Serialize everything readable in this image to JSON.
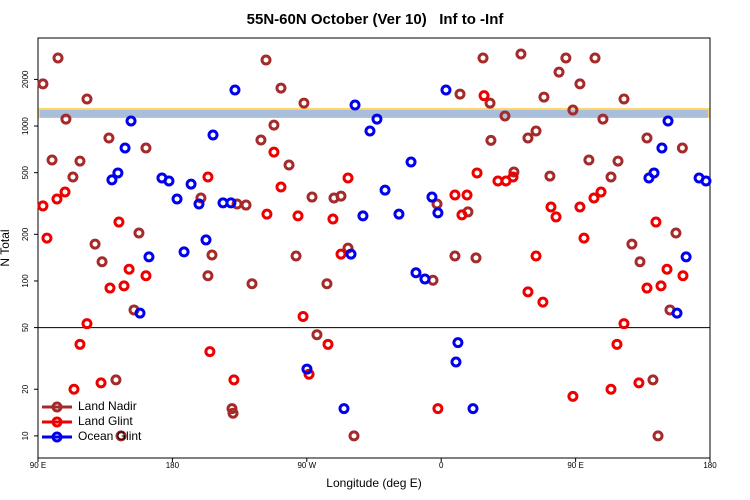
{
  "chart_data": {
    "type": "scatter",
    "title": "55N-60N October (Ver 10)   Inf to -Inf",
    "x_label": "Longitude (deg E)",
    "y_label": "N Total",
    "xlim": [
      90,
      540
    ],
    "xticks": [
      {
        "value": 90,
        "label": "90 E"
      },
      {
        "value": 180,
        "label": "180"
      },
      {
        "value": 270,
        "label": "90 W"
      },
      {
        "value": 360,
        "label": "0"
      },
      {
        "value": 450,
        "label": "90 E"
      },
      {
        "value": 540,
        "label": "180"
      }
    ],
    "ylim": [
      7.2,
      3700
    ],
    "yticks": [
      10,
      20,
      50,
      100,
      200,
      500,
      1000,
      2000
    ],
    "log_y": true,
    "hline": 50,
    "band": [
      1130,
      1310
    ],
    "legend": "bottom-left",
    "series": [
      {
        "name": "Land Nadir",
        "color": "#a52a2a",
        "x": [
          93.3,
          103.4,
          99.4,
          108.7,
          113.4,
          118.1,
          122.8,
          128.2,
          132.9,
          137.5,
          142.2,
          145.6,
          154.3,
          157.6,
          162.3,
          203.8,
          206.5,
          199.1,
          223.3,
          220.6,
          219.9,
          229.3,
          233.3,
          239.3,
          242.7,
          248.0,
          252.7,
          258.1,
          262.8,
          268.1,
          273.5,
          276.8,
          283.5,
          288.2,
          292.9,
          297.6,
          301.6,
          354.5,
          357.2,
          369.2,
          372.6,
          377.9,
          383.3,
          388.0,
          393.3,
          392.7,
          402.7,
          408.7,
          413.4,
          418.1,
          423.5,
          428.8,
          432.8,
          438.9,
          443.5,
          448.2,
          452.9,
          458.9,
          463.0,
          468.3,
          473.7,
          478.4,
          482.4,
          487.7,
          493.1,
          497.8,
          501.8,
          505.2,
          513.2,
          517.2,
          521.5
        ],
        "values": [
          1870,
          2750,
          604,
          1109,
          469,
          594,
          1494,
          173,
          133,
          837,
          23,
          10,
          65,
          204,
          721,
          108,
          147,
          343,
          314,
          14,
          15,
          309,
          96,
          812,
          2667,
          1014,
          1758,
          560,
          145,
          1406,
          348,
          45,
          96,
          343,
          353,
          163,
          10,
          101,
          314,
          145,
          1608,
          279,
          141,
          2750,
          808,
          1406,
          1161,
          505,
          2917,
          837,
          929,
          1538,
          475,
          2228,
          2750,
          1268,
          1870,
          604,
          2750,
          1109,
          469,
          594,
          1494,
          173,
          133,
          837,
          23,
          10,
          65,
          204,
          721
        ]
      },
      {
        "name": "Land Glint",
        "color": "#ee0000",
        "x": [
          93.3,
          96.0,
          102.7,
          108.1,
          114.1,
          118.1,
          122.8,
          132.2,
          138.2,
          147.6,
          151.0,
          144.2,
          162.3,
          203.8,
          205.1,
          221.2,
          243.3,
          248.0,
          252.7,
          264.1,
          267.5,
          271.5,
          284.2,
          287.5,
          292.9,
          297.6,
          357.8,
          369.2,
          373.9,
          377.3,
          384.0,
          388.7,
          398.0,
          403.4,
          408.1,
          418.1,
          423.5,
          428.1,
          433.5,
          436.9,
          448.2,
          452.9,
          455.6,
          462.3,
          467.0,
          473.7,
          477.7,
          482.4,
          492.4,
          497.8,
          507.2,
          511.2,
          503.8,
          521.9
        ],
        "values": [
          305,
          189,
          338,
          375,
          20,
          39,
          53,
          22,
          90,
          93,
          119,
          240,
          108,
          469,
          35,
          23,
          270,
          679,
          404,
          263,
          59,
          25,
          39,
          251,
          149,
          462,
          15,
          359,
          267,
          359,
          498,
          1570,
          442,
          442,
          469,
          85,
          145,
          73,
          300,
          259,
          18,
          300,
          189,
          343,
          375,
          20,
          39,
          53,
          22,
          90,
          93,
          119,
          240,
          108
        ]
      },
      {
        "name": "Ocean Glint",
        "color": "#0000ee",
        "x": [
          139.5,
          143.5,
          148.3,
          152.3,
          158.3,
          164.3,
          173.0,
          177.7,
          183.1,
          187.8,
          192.5,
          197.8,
          202.5,
          207.2,
          213.9,
          219.2,
          221.9,
          270.1,
          294.9,
          299.6,
          302.3,
          307.6,
          312.3,
          317.0,
          322.4,
          331.7,
          339.8,
          343.1,
          349.1,
          353.8,
          357.8,
          363.2,
          369.9,
          371.2,
          381.3,
          499.1,
          502.5,
          507.8,
          511.9,
          517.9,
          524.0,
          532.7,
          537.3
        ],
        "values": [
          449,
          498,
          721,
          1077,
          62,
          143,
          462,
          442,
          338,
          154,
          422,
          314,
          184,
          875,
          319,
          319,
          1708,
          27,
          15,
          149,
          1366,
          263,
          929,
          1109,
          386,
          270,
          586,
          113,
          103,
          348,
          275,
          1708,
          30,
          40,
          15,
          462,
          498,
          721,
          1077,
          62,
          143,
          462,
          442
        ]
      }
    ]
  }
}
